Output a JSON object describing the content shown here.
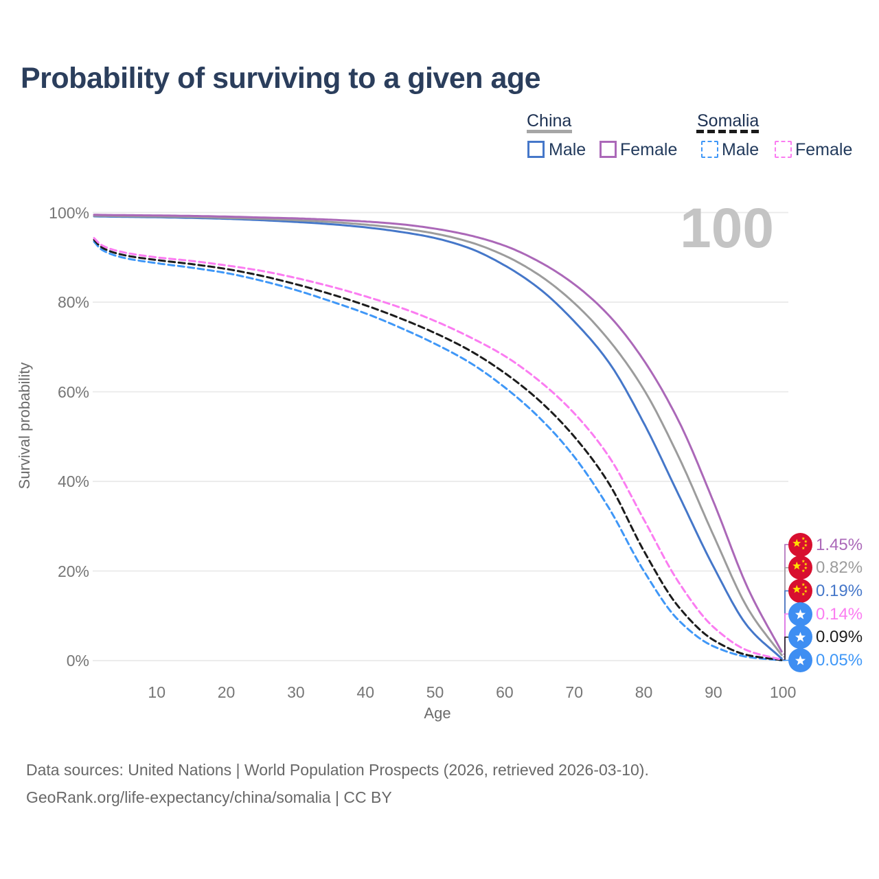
{
  "title": "Probability of surviving to a given age",
  "watermark": "100",
  "legend": {
    "groups": [
      {
        "id": "china",
        "label": "China",
        "underline_style": "solid",
        "underline_color": "#a6a6a6",
        "items": [
          {
            "label": "Male",
            "color": "#4577c9",
            "dashed": false
          },
          {
            "label": "Female",
            "color": "#ab68b8",
            "dashed": false
          }
        ]
      },
      {
        "id": "somalia",
        "label": "Somalia",
        "underline_style": "dashed",
        "underline_color": "#1a1a1a",
        "items": [
          {
            "label": "Male",
            "color": "#3f97f7",
            "dashed": true
          },
          {
            "label": "Female",
            "color": "#fb7cf1",
            "dashed": true
          }
        ]
      }
    ]
  },
  "chart_data": {
    "type": "line",
    "title": "Probability of surviving to a given age",
    "xlabel": "Age",
    "ylabel": "Survival probability",
    "xlim": [
      0.8,
      100
    ],
    "ylim": [
      0,
      100
    ],
    "grid": "horizontal-only",
    "legend_position": "top-right",
    "x_ticks": [
      {
        "v": 10,
        "label": "10"
      },
      {
        "v": 20,
        "label": "20"
      },
      {
        "v": 30,
        "label": "30"
      },
      {
        "v": 40,
        "label": "40"
      },
      {
        "v": 50,
        "label": "50"
      },
      {
        "v": 60,
        "label": "60"
      },
      {
        "v": 70,
        "label": "70"
      },
      {
        "v": 80,
        "label": "80"
      },
      {
        "v": 90,
        "label": "90"
      },
      {
        "v": 100,
        "label": "100"
      }
    ],
    "y_ticks": [
      {
        "v": 0,
        "label": "0%"
      },
      {
        "v": 20,
        "label": "20%"
      },
      {
        "v": 40,
        "label": "40%"
      },
      {
        "v": 60,
        "label": "60%"
      },
      {
        "v": 80,
        "label": "80%"
      },
      {
        "v": 100,
        "label": "100%"
      }
    ],
    "x": [
      1,
      2,
      5,
      10,
      15,
      20,
      25,
      30,
      35,
      40,
      45,
      50,
      55,
      60,
      65,
      70,
      75,
      80,
      85,
      90,
      95,
      100
    ],
    "series": [
      {
        "name": "Somalia Male",
        "group": "Somalia",
        "color": "#3f97f7",
        "dash": "dashed",
        "end_label": "0.05%",
        "values": [
          93.5,
          91.8,
          90.0,
          88.7,
          87.7,
          86.5,
          84.8,
          82.7,
          80.2,
          77.5,
          74.3,
          70.7,
          66.5,
          61.0,
          54.2,
          45.5,
          34.0,
          20.0,
          9.0,
          3.2,
          0.8,
          0.05
        ]
      },
      {
        "name": "Somalia Both sexes",
        "group": "Somalia",
        "color": "#1c1c1c",
        "dash": "dashed",
        "end_label": "0.09%",
        "values": [
          93.9,
          92.3,
          90.6,
          89.4,
          88.5,
          87.4,
          85.9,
          84.0,
          81.8,
          79.3,
          76.4,
          73.1,
          69.2,
          64.2,
          58.0,
          50.0,
          39.5,
          24.5,
          12.0,
          4.6,
          1.2,
          0.09
        ]
      },
      {
        "name": "Somalia Female",
        "group": "Somalia",
        "color": "#fb7cf1",
        "dash": "dashed",
        "end_label": "0.14%",
        "values": [
          94.3,
          92.8,
          91.2,
          90.0,
          89.2,
          88.2,
          87.0,
          85.4,
          83.5,
          81.3,
          78.8,
          75.8,
          72.2,
          68.0,
          62.4,
          55.2,
          45.5,
          31.5,
          17.5,
          7.5,
          2.2,
          0.14
        ]
      },
      {
        "name": "China Male",
        "group": "China",
        "color": "#4577c9",
        "dash": "solid",
        "end_label": "0.19%",
        "values": [
          99.15,
          99.12,
          99.05,
          98.95,
          98.8,
          98.6,
          98.3,
          97.9,
          97.4,
          96.7,
          95.7,
          94.3,
          92.0,
          88.2,
          83.0,
          75.7,
          66.5,
          53.0,
          37.0,
          21.0,
          7.5,
          0.19
        ]
      },
      {
        "name": "China Both sexes",
        "group": "China",
        "color": "#9c9c9c",
        "dash": "solid",
        "end_label": "0.82%",
        "values": [
          99.3,
          99.27,
          99.2,
          99.1,
          99.0,
          98.8,
          98.6,
          98.3,
          97.9,
          97.3,
          96.5,
          95.3,
          93.4,
          90.4,
          86.0,
          79.8,
          71.5,
          60.5,
          45.5,
          28.0,
          11.5,
          0.82
        ]
      },
      {
        "name": "China Female",
        "group": "China",
        "color": "#ab68b8",
        "dash": "solid",
        "end_label": "1.45%",
        "values": [
          99.5,
          99.47,
          99.42,
          99.35,
          99.25,
          99.1,
          98.9,
          98.7,
          98.4,
          98.0,
          97.4,
          96.4,
          94.9,
          92.6,
          89.0,
          84.0,
          77.0,
          67.0,
          53.5,
          35.5,
          16.0,
          1.45
        ]
      }
    ]
  },
  "end_labels": [
    {
      "series": "China Female",
      "label": "1.45%",
      "color": "#ab68b8",
      "flag": "china"
    },
    {
      "series": "China Both sexes",
      "label": "0.82%",
      "color": "#9c9c9c",
      "flag": "china"
    },
    {
      "series": "China Male",
      "label": "0.19%",
      "color": "#4577c9",
      "flag": "china"
    },
    {
      "series": "Somalia Female",
      "label": "0.14%",
      "color": "#fb7cf1",
      "flag": "somalia"
    },
    {
      "series": "Somalia Both sexes",
      "label": "0.09%",
      "color": "#1c1c1c",
      "flag": "somalia"
    },
    {
      "series": "Somalia Male",
      "label": "0.05%",
      "color": "#3f97f7",
      "flag": "somalia"
    }
  ],
  "flag_colors": {
    "china_bg": "#d80f2f",
    "china_star": "#ffde02",
    "somalia_bg": "#3e8ef2",
    "somalia_star": "#ffffff"
  },
  "footer": {
    "line1": "Data sources: United Nations | World Population Prospects (2026, retrieved 2026-03-10).",
    "line2": "GeoRank.org/life-expectancy/china/somalia | CC BY"
  }
}
